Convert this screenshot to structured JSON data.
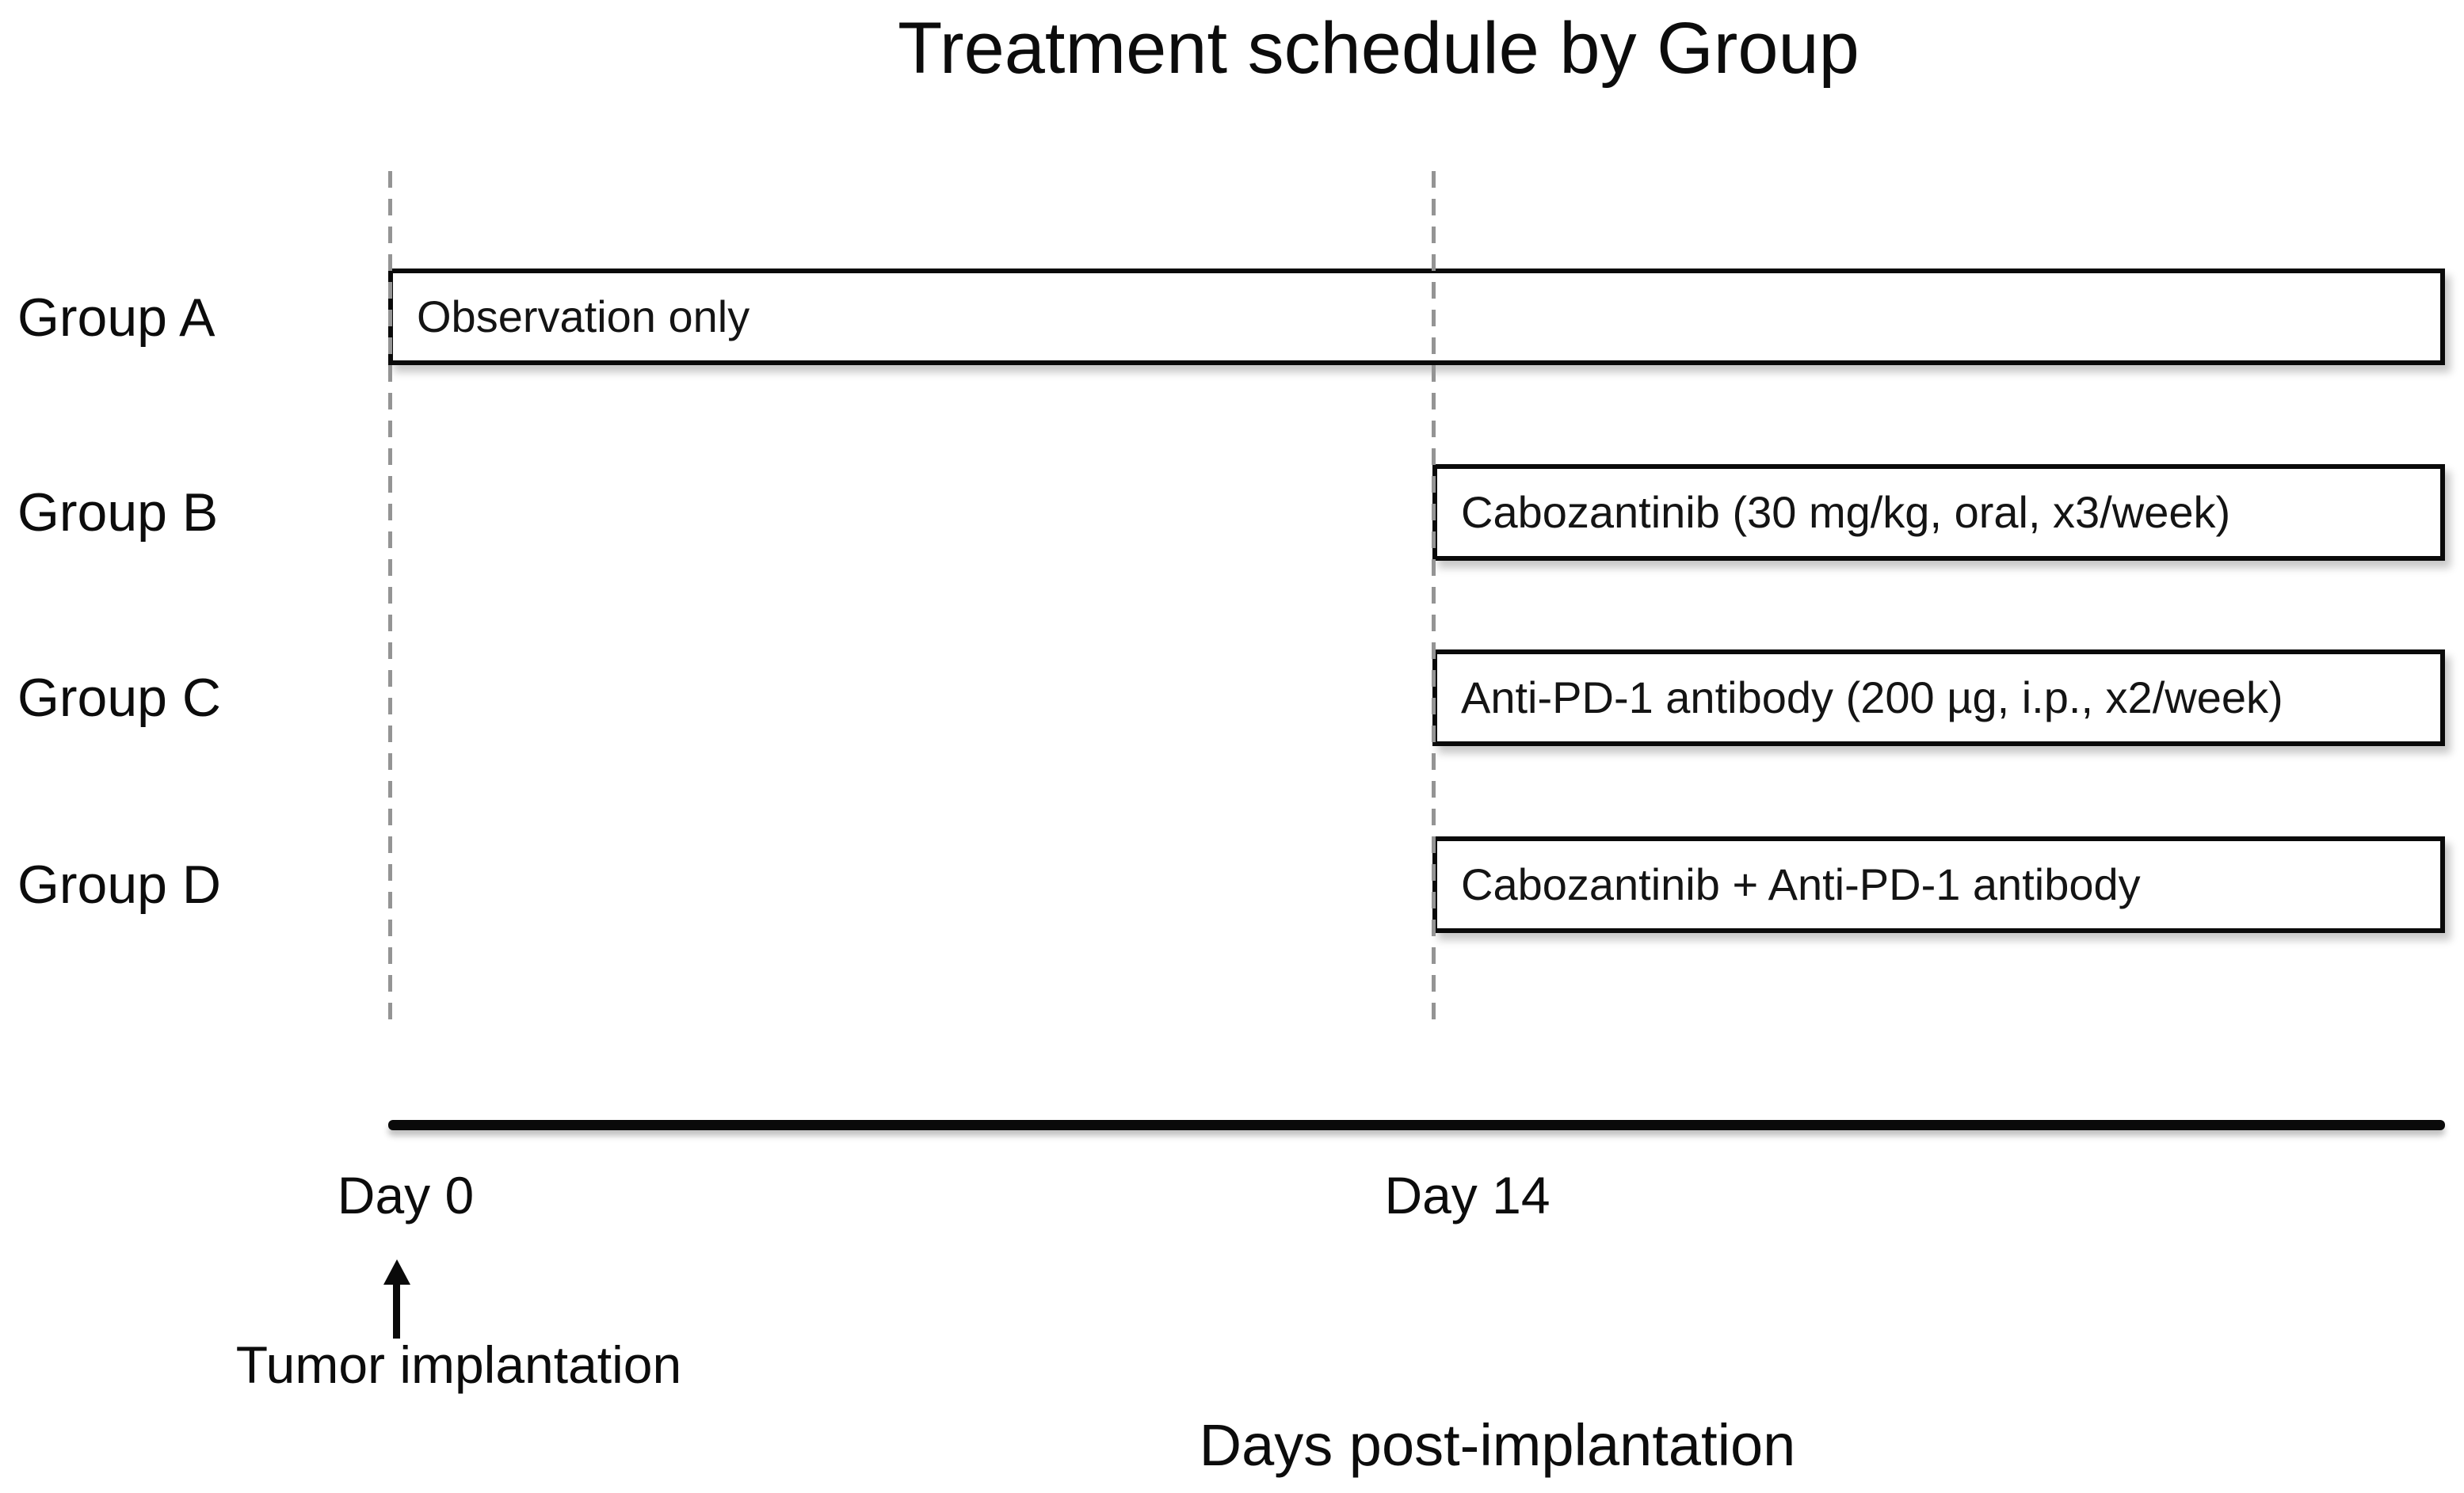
{
  "figure": {
    "title": "Treatment schedule by Group",
    "x_axis": {
      "label": "Days post-implantation",
      "ticks": [
        {
          "label": "Day 0",
          "day": 0
        },
        {
          "label": "Day 14",
          "day": 14
        }
      ]
    },
    "event_annotation": {
      "label": "Tumor implantation",
      "marker": "up-arrow",
      "at_tick": "Day 0"
    },
    "groups": [
      {
        "name": "Group A",
        "treatment": "Observation only",
        "start": "Day 0"
      },
      {
        "name": "Group B",
        "treatment": "Cabozantinib (30 mg/kg, oral, x3/week)",
        "start": "Day 14"
      },
      {
        "name": "Group C",
        "treatment": "Anti-PD-1 antibody (200 µg, i.p., x2/week)",
        "start": "Day 14"
      },
      {
        "name": "Group D",
        "treatment": "Cabozantinib + Anti-PD-1 antibody",
        "start": "Day 14"
      }
    ]
  },
  "chart_data": {
    "type": "bar",
    "subtype": "horizontal-timeline-gantt",
    "title": "Treatment schedule by Group",
    "xlabel": "Days post-implantation",
    "x_ticks": [
      "Day 0",
      "Day 14"
    ],
    "categories": [
      "Group A",
      "Group B",
      "Group C",
      "Group D"
    ],
    "series": [
      {
        "name": "Group A",
        "bar_label": "Observation only",
        "start_day": 0,
        "end_day": null
      },
      {
        "name": "Group B",
        "bar_label": "Cabozantinib (30 mg/kg, oral, x3/week)",
        "start_day": 14,
        "end_day": null
      },
      {
        "name": "Group C",
        "bar_label": "Anti-PD-1 antibody (200 µg, i.p., x2/week)",
        "start_day": 14,
        "end_day": null
      },
      {
        "name": "Group D",
        "bar_label": "Cabozantinib + Anti-PD-1 antibody",
        "start_day": 14,
        "end_day": null
      }
    ],
    "gridlines": {
      "style": "dashed-vertical",
      "at_days": [
        0,
        14
      ]
    },
    "annotations": [
      "Tumor implantation (up arrow at Day 0 below axis)"
    ],
    "legend_position": "none"
  },
  "colors": {
    "background": "#ffffff",
    "text": "#0c0c0c",
    "bar_fill": "#ffffff",
    "bar_border": "#0a0a0a",
    "dashed_gridline": "#949494",
    "axis_line": "#0a0a0a"
  }
}
